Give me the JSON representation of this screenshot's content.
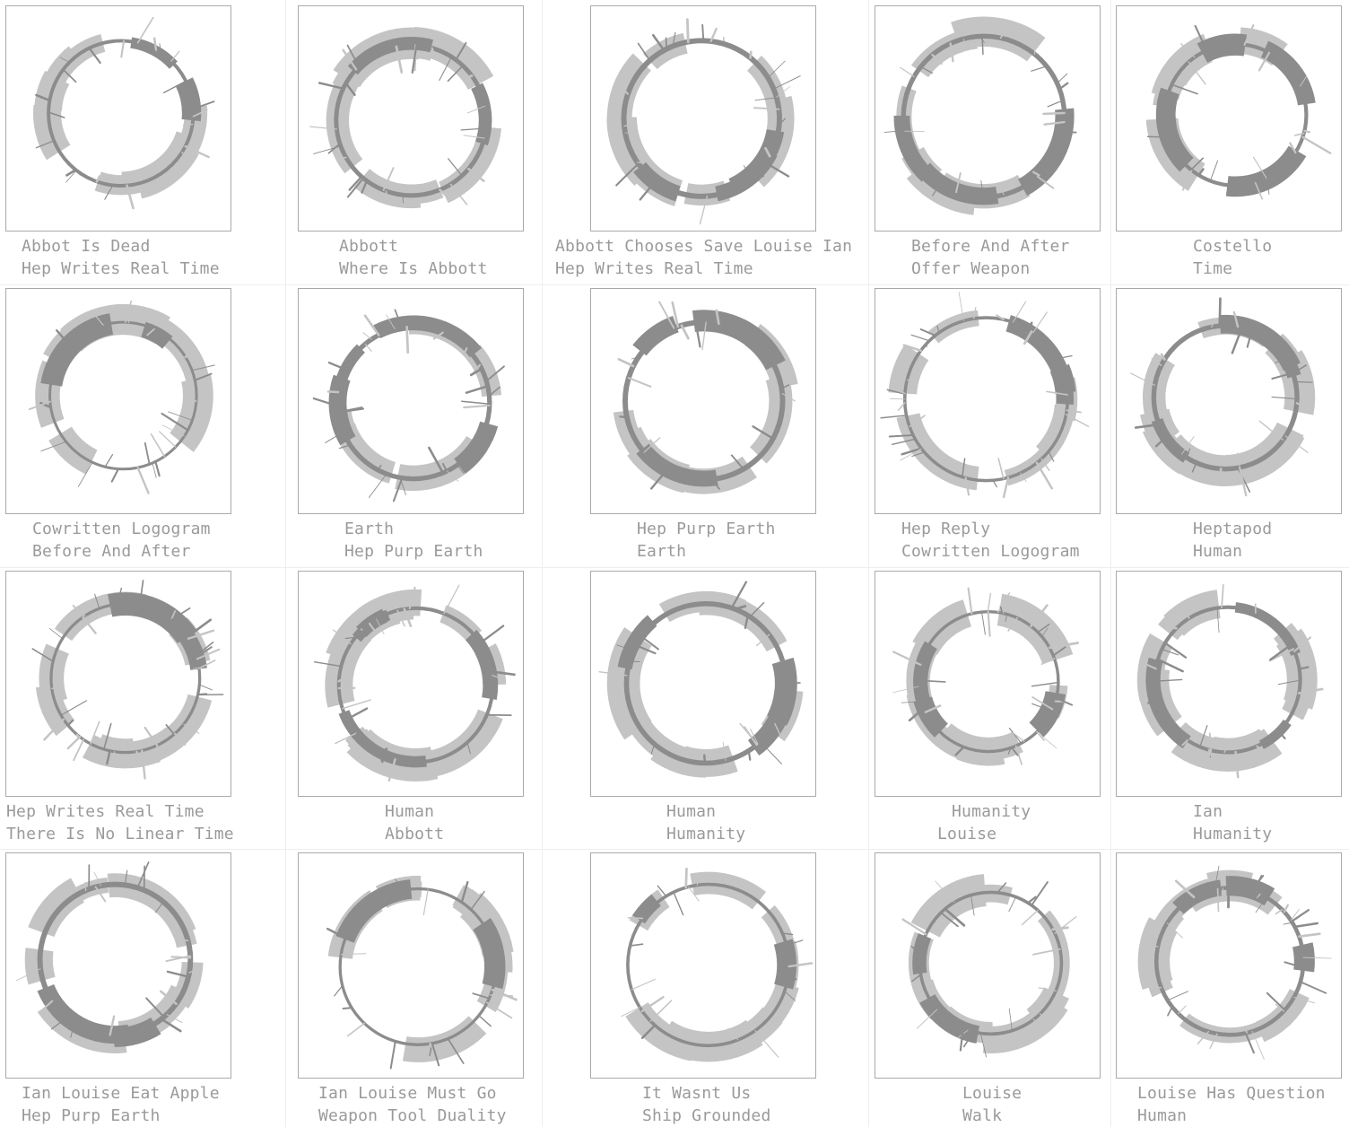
{
  "colors": {
    "ring_dark": "#8c8c8c",
    "ring_light": "#c4c4c4",
    "caption": "#9a9a9a",
    "frame_border": "#aaaaaa"
  },
  "tiles": [
    {
      "line1": "Abbot Is Dead",
      "line2": "Hep Writes Real Time"
    },
    {
      "line1": "Abbott",
      "line2": "Where Is Abbott"
    },
    {
      "line1": "Abbott Chooses Save Louise Ian",
      "line2": "Hep Writes Real Time"
    },
    {
      "line1": "Before And After",
      "line2": "Offer Weapon"
    },
    {
      "line1": "Costello",
      "line2": "Time"
    },
    {
      "line1": "Cowritten Logogram",
      "line2": "Before And After"
    },
    {
      "line1": "Earth",
      "line2": "Hep Purp Earth"
    },
    {
      "line1": "Hep Purp Earth",
      "line2": "Earth"
    },
    {
      "line1": "Hep Reply",
      "line2": "Cowritten Logogram"
    },
    {
      "line1": "Heptapod",
      "line2": "Human"
    },
    {
      "line1": "Hep Writes Real Time",
      "line2": "There Is No Linear Time"
    },
    {
      "line1": "Human",
      "line2": "Abbott"
    },
    {
      "line1": "Human",
      "line2": "Humanity"
    },
    {
      "line1": "Humanity",
      "line2": "Louise"
    },
    {
      "line1": "Ian",
      "line2": "Humanity"
    },
    {
      "line1": "Ian Louise Eat Apple",
      "line2": "Hep Purp Earth"
    },
    {
      "line1": "Ian Louise Must Go",
      "line2": "Weapon Tool Duality"
    },
    {
      "line1": "It Wasnt Us",
      "line2": "Ship Grounded"
    },
    {
      "line1": "Louise",
      "line2": "Walk"
    },
    {
      "line1": "Louise Has Question",
      "line2": "Human"
    }
  ]
}
